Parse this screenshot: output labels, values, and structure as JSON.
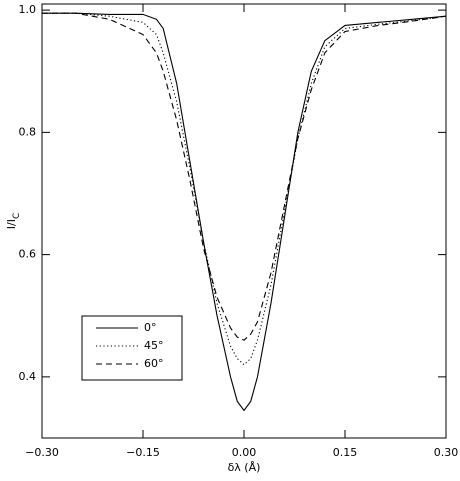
{
  "chart_data": {
    "type": "line",
    "xlabel": "δλ (Å)",
    "ylabel": "I/I",
    "ylabel_subscript": "C",
    "x": [
      -0.3,
      -0.25,
      -0.2,
      -0.15,
      -0.13,
      -0.12,
      -0.1,
      -0.08,
      -0.06,
      -0.04,
      -0.02,
      -0.01,
      0.0,
      0.01,
      0.02,
      0.04,
      0.06,
      0.08,
      0.1,
      0.12,
      0.15,
      0.2,
      0.25,
      0.3
    ],
    "series": [
      {
        "name": "0°",
        "color": "#000000",
        "dash": "solid",
        "values": [
          0.995,
          0.995,
          0.993,
          0.993,
          0.985,
          0.97,
          0.88,
          0.75,
          0.62,
          0.5,
          0.4,
          0.36,
          0.345,
          0.36,
          0.4,
          0.52,
          0.66,
          0.8,
          0.9,
          0.95,
          0.975,
          0.98,
          0.985,
          0.99
        ]
      },
      {
        "name": "45°",
        "color": "#000000",
        "dash": "dotted",
        "values": [
          0.995,
          0.995,
          0.99,
          0.98,
          0.96,
          0.93,
          0.85,
          0.74,
          0.62,
          0.52,
          0.45,
          0.43,
          0.42,
          0.43,
          0.46,
          0.55,
          0.67,
          0.79,
          0.88,
          0.94,
          0.97,
          0.977,
          0.983,
          0.99
        ]
      },
      {
        "name": "60°",
        "color": "#000000",
        "dash": "dashed",
        "values": [
          0.995,
          0.995,
          0.985,
          0.96,
          0.93,
          0.9,
          0.82,
          0.72,
          0.61,
          0.53,
          0.48,
          0.465,
          0.46,
          0.47,
          0.49,
          0.57,
          0.68,
          0.79,
          0.87,
          0.93,
          0.965,
          0.975,
          0.982,
          0.99
        ]
      }
    ],
    "xlim": [
      -0.3,
      0.3
    ],
    "xticks": [
      {
        "value": -0.3,
        "label": "−0.30"
      },
      {
        "value": -0.15,
        "label": "−0.15"
      },
      {
        "value": 0,
        "label": "0.00"
      },
      {
        "value": 0.15,
        "label": "0.15"
      },
      {
        "value": 0.3,
        "label": "0.30"
      }
    ],
    "ylim": [
      0.3,
      1.01
    ],
    "yticks": [
      0.4,
      0.6,
      0.8,
      {
        "value": 1,
        "label": "1.0"
      }
    ],
    "legend": "lower-left"
  }
}
